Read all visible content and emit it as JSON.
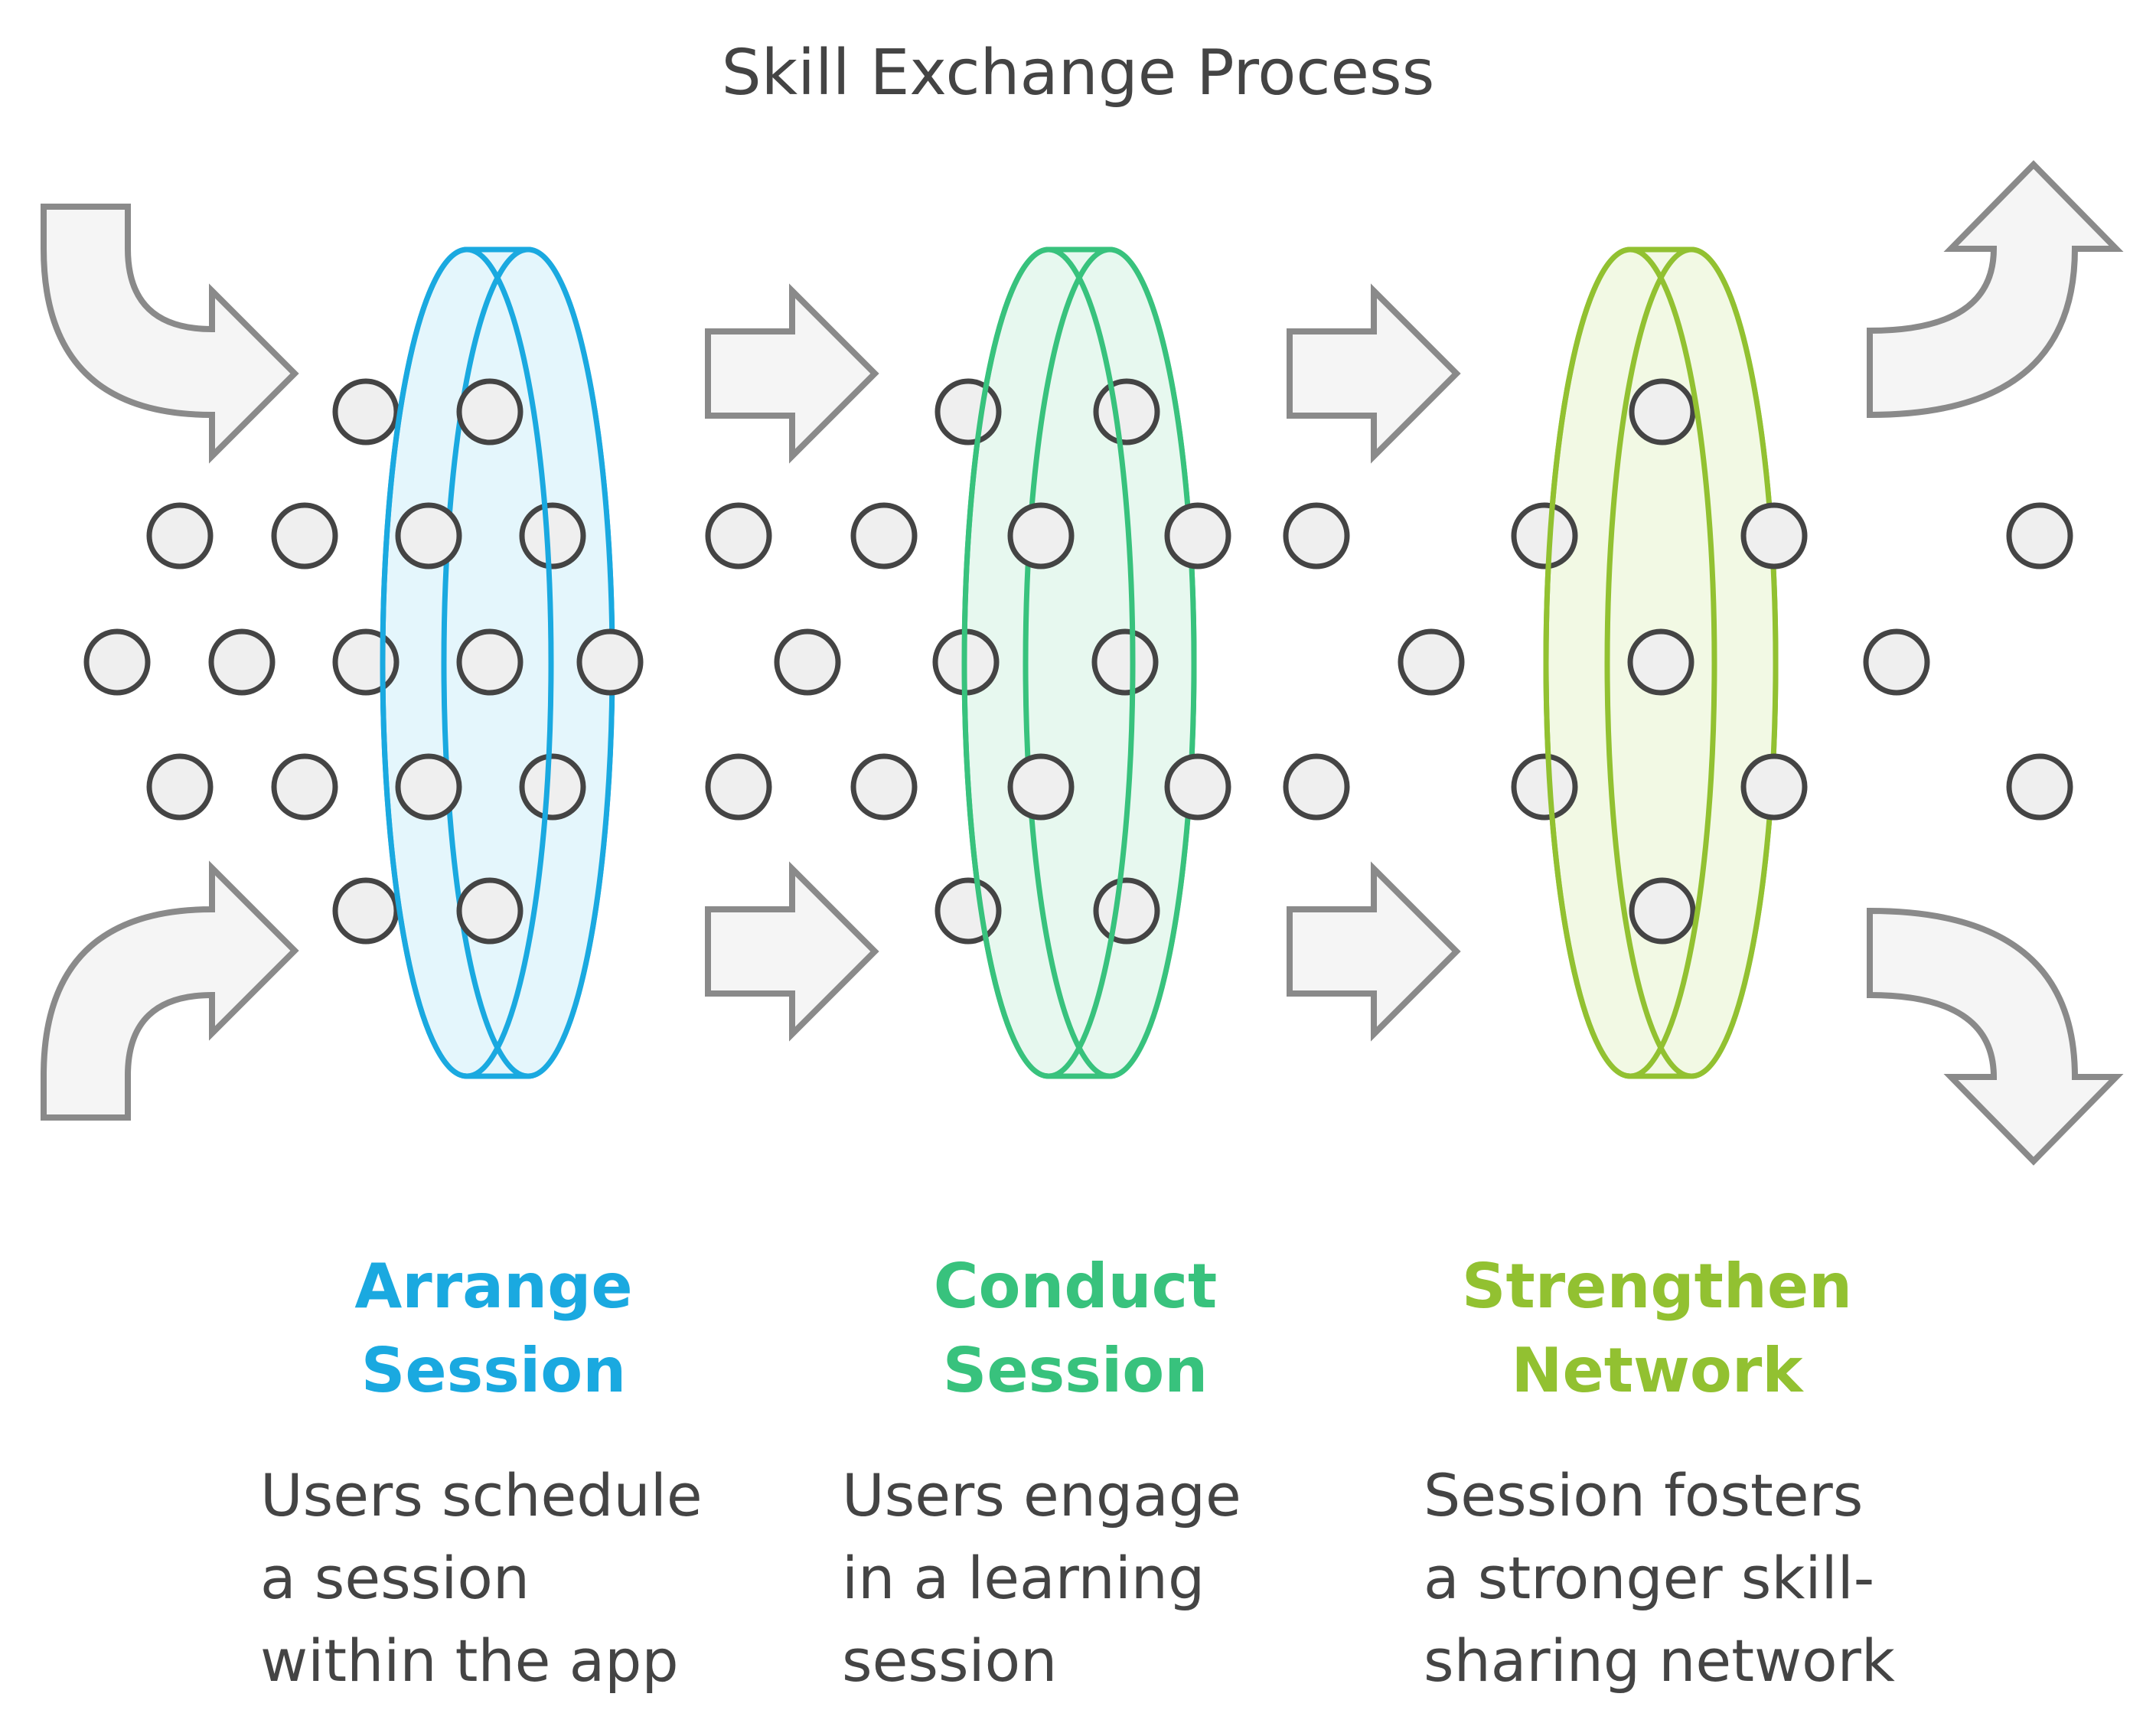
{
  "title": "Skill Exchange Process",
  "stages": [
    {
      "name_line1": "Arrange",
      "name_line2": "Session",
      "description": "Users schedule\na session\nwithin the app",
      "color": "#1aa9e0",
      "fill": "#e4f6fc"
    },
    {
      "name_line1": "Conduct",
      "name_line2": "Session",
      "description": "Users engage\nin a learning\nsession",
      "color": "#38c27d",
      "fill": "#e7f8ef"
    },
    {
      "name_line1": "Strengthen",
      "name_line2": "Network",
      "description": "Session fosters\na stronger skill-\nsharing network",
      "color": "#92c131",
      "fill": "#f2f9e4"
    }
  ],
  "arrow_color": "#8a8a8a",
  "arrow_fill": "#f5f5f5",
  "dot_color": "#efefef",
  "dot_stroke": "#444444"
}
